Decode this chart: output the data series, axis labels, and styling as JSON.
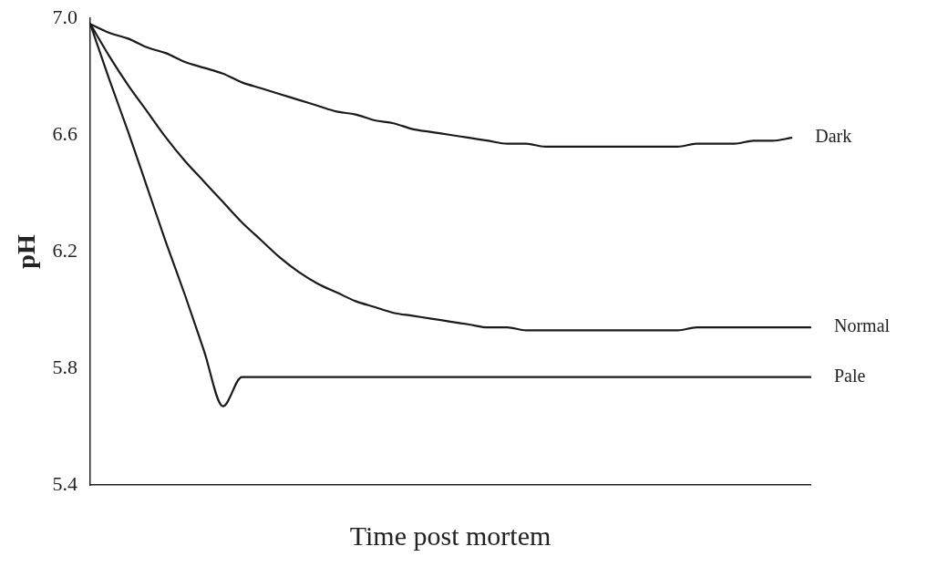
{
  "chart_data": {
    "type": "line",
    "xlabel": "Time post mortem",
    "ylabel": "pH",
    "categories": [
      null,
      null,
      null,
      null,
      null,
      null,
      null,
      null,
      null,
      null,
      null,
      null,
      null,
      null,
      null,
      null,
      null,
      null,
      null,
      null,
      null,
      null,
      null,
      null,
      null,
      null,
      null,
      null,
      null,
      null,
      null,
      null,
      null,
      null,
      null,
      null,
      null,
      null,
      null
    ],
    "ylim": [
      5.4,
      7.0
    ],
    "yticks": [
      {
        "value": 5.4,
        "label": "5.4"
      },
      {
        "value": 5.8,
        "label": "5.8"
      },
      {
        "value": 6.2,
        "label": "6.2"
      },
      {
        "value": 6.6,
        "label": "6.6"
      },
      {
        "value": 7.0,
        "label": "7.0"
      }
    ],
    "grid": false,
    "legend": false,
    "marker": "none",
    "line_style": "solid",
    "tick_labels": "y",
    "series": [
      {
        "name": "Dark",
        "color": "#1a1a1a",
        "values": [
          6.98,
          6.95,
          6.93,
          6.9,
          6.88,
          6.85,
          6.83,
          6.81,
          6.78,
          6.76,
          6.74,
          6.72,
          6.7,
          6.68,
          6.67,
          6.65,
          6.64,
          6.62,
          6.61,
          6.6,
          6.59,
          6.58,
          6.57,
          6.57,
          6.56,
          6.56,
          6.56,
          6.56,
          6.56,
          6.56,
          6.56,
          6.56,
          6.57,
          6.57,
          6.57,
          6.58,
          6.58,
          6.59,
          null
        ]
      },
      {
        "name": "Normal",
        "color": "#1a1a1a",
        "values": [
          6.98,
          6.87,
          6.77,
          6.68,
          6.59,
          6.51,
          6.44,
          6.37,
          6.3,
          6.24,
          6.18,
          6.13,
          6.09,
          6.06,
          6.03,
          6.01,
          5.99,
          5.98,
          5.97,
          5.96,
          5.95,
          5.94,
          5.94,
          5.93,
          5.93,
          5.93,
          5.93,
          5.93,
          5.93,
          5.93,
          5.93,
          5.93,
          5.94,
          5.94,
          5.94,
          5.94,
          5.94,
          5.94,
          5.94
        ]
      },
      {
        "name": "Pale",
        "color": "#1a1a1a",
        "values": [
          6.98,
          6.79,
          6.61,
          6.42,
          6.23,
          6.05,
          5.86,
          5.67,
          5.77,
          5.77,
          5.77,
          5.77,
          5.77,
          5.77,
          5.77,
          5.77,
          5.77,
          5.77,
          5.77,
          5.77,
          5.77,
          5.77,
          5.77,
          5.77,
          5.77,
          5.77,
          5.77,
          5.77,
          5.77,
          5.77,
          5.77,
          5.77,
          5.77,
          5.77,
          5.77,
          5.77,
          5.77,
          5.77,
          5.77
        ]
      }
    ]
  }
}
